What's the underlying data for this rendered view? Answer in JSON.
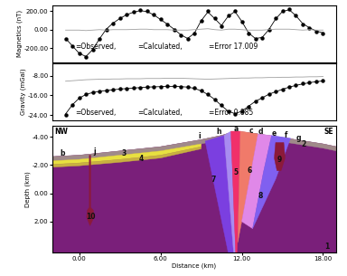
{
  "chart_data": [
    {
      "type": "line",
      "y_label": "Magnetics (nT)",
      "x": [
        -1,
        -0.5,
        0,
        0.5,
        1,
        1.5,
        2,
        2.5,
        3,
        3.5,
        4,
        4.5,
        5,
        5.5,
        6,
        6.5,
        7,
        7.5,
        8,
        8.5,
        9,
        9.5,
        10,
        10.5,
        11,
        11.5,
        12,
        12.5,
        13,
        13.5,
        14,
        14.5,
        15,
        15.5,
        16,
        16.5,
        17,
        17.5,
        18
      ],
      "series": [
        {
          "name": "=Observed,",
          "color": "#000000",
          "marker": "dot",
          "line_style": "none",
          "values": [
            -100,
            -180,
            -260,
            -300,
            -220,
            -100,
            0,
            70,
            120,
            160,
            190,
            210,
            200,
            160,
            110,
            60,
            0,
            -60,
            -100,
            -40,
            100,
            200,
            120,
            40,
            150,
            200,
            90,
            -40,
            -100,
            -90,
            0,
            120,
            200,
            220,
            150,
            60,
            20,
            -20,
            -40
          ]
        },
        {
          "name": "=Calculated,",
          "color": "#000000",
          "marker": "none",
          "line_style": "solid",
          "values": [
            -95,
            -175,
            -255,
            -290,
            -215,
            -100,
            5,
            70,
            120,
            160,
            188,
            205,
            195,
            160,
            110,
            60,
            5,
            -55,
            -95,
            -40,
            95,
            190,
            120,
            45,
            145,
            195,
            90,
            -35,
            -95,
            -85,
            0,
            115,
            195,
            215,
            150,
            65,
            20,
            -15,
            -35
          ]
        },
        {
          "name": "=Error 17.009",
          "color": "#a0a0a0",
          "marker": "none",
          "line_style": "solid",
          "values": [
            -5,
            -5,
            -5,
            -10,
            -5,
            0,
            -5,
            0,
            0,
            0,
            2,
            5,
            5,
            0,
            0,
            0,
            -5,
            -5,
            -5,
            0,
            5,
            10,
            0,
            -5,
            5,
            5,
            0,
            -5,
            -5,
            -5,
            0,
            5,
            5,
            5,
            0,
            -5,
            0,
            -5,
            -5
          ]
        }
      ],
      "xlim": [
        -2,
        19
      ],
      "ylim": [
        -350,
        260
      ],
      "yticks": [
        {
          "value": 200,
          "label": "200.00"
        },
        {
          "value": 0,
          "label": "0.00"
        },
        {
          "value": -200,
          "label": "-200.00"
        }
      ],
      "tick_labels": "y"
    },
    {
      "type": "line",
      "y_label": "Gravity (mGal)",
      "x": [
        -1,
        -0.5,
        0,
        0.5,
        1,
        1.5,
        2,
        2.5,
        3,
        3.5,
        4,
        4.5,
        5,
        5.5,
        6,
        6.5,
        7,
        7.5,
        8,
        8.5,
        9,
        9.5,
        10,
        10.5,
        11,
        11.5,
        12,
        12.5,
        13,
        13.5,
        14,
        14.5,
        15,
        15.5,
        16,
        16.5,
        17,
        17.5,
        18
      ],
      "series": [
        {
          "name": "=Observed,",
          "color": "#000000",
          "marker": "dot",
          "line_style": "none",
          "values": [
            -24,
            -20,
            -17,
            -15.5,
            -14.8,
            -14.3,
            -14,
            -13.7,
            -13.4,
            -13.2,
            -13,
            -12.8,
            -12.6,
            -12.5,
            -12.4,
            -12.3,
            -12.3,
            -12.4,
            -12.6,
            -13,
            -14,
            -15.5,
            -17.5,
            -20,
            -22.5,
            -23.5,
            -22.5,
            -20.5,
            -18.5,
            -17,
            -15.5,
            -14.5,
            -13.5,
            -12.5,
            -11.8,
            -11.2,
            -10.7,
            -10.3,
            -10
          ]
        },
        {
          "name": "=Calculated,",
          "color": "#000000",
          "marker": "none",
          "line_style": "solid",
          "values": [
            -23.5,
            -19.8,
            -17.1,
            -15.6,
            -14.8,
            -14.3,
            -14,
            -13.7,
            -13.4,
            -13.2,
            -13,
            -12.8,
            -12.6,
            -12.5,
            -12.4,
            -12.3,
            -12.3,
            -12.4,
            -12.6,
            -13.1,
            -14.1,
            -15.6,
            -17.6,
            -20.1,
            -22.4,
            -23.4,
            -22.4,
            -20.4,
            -18.4,
            -17,
            -15.5,
            -14.5,
            -13.5,
            -12.6,
            -11.9,
            -11.3,
            -10.8,
            -10.4,
            -10.1
          ]
        },
        {
          "name": "=Error 0.885",
          "color": "#a0a0a0",
          "marker": "none",
          "line_style": "solid",
          "values": [
            -10.2,
            -10,
            -9.8,
            -9.6,
            -9.5,
            -9.4,
            -9.4,
            -9.3,
            -9.3,
            -9.2,
            -9.2,
            -9.2,
            -9.1,
            -9.1,
            -9.1,
            -9,
            -9,
            -9,
            -9.1,
            -9.2,
            -9.3,
            -9.4,
            -9.3,
            -9.2,
            -9.1,
            -9,
            -8.9,
            -8.9,
            -8.8,
            -8.8,
            -8.7,
            -8.7,
            -8.6,
            -8.6,
            -8.5,
            -8.5,
            -8.4,
            -8.4,
            -8.3
          ]
        }
      ],
      "xlim": [
        -2,
        19
      ],
      "ylim": [
        -26,
        -3
      ],
      "yticks": [
        {
          "value": -8,
          "label": "-8.00"
        },
        {
          "value": -16,
          "label": "-16.00"
        },
        {
          "value": -24,
          "label": "-24.00"
        }
      ],
      "tick_labels": "y"
    },
    {
      "type": "section",
      "x_label": "Distance (km)",
      "y_label": "Depth (km)",
      "left_text": "NW",
      "right_text": "SE",
      "xlim": [
        -2,
        19
      ],
      "ylim": [
        4.2,
        -4.8
      ],
      "xticks": [
        {
          "value": 0,
          "label": "0.00"
        },
        {
          "value": 6,
          "label": "6.00"
        },
        {
          "value": 12,
          "label": "12.00"
        },
        {
          "value": 18,
          "label": "18.00"
        }
      ],
      "yticks": [
        {
          "value": -4,
          "label": "-4.00"
        },
        {
          "value": -2,
          "label": "-2.00"
        },
        {
          "value": 0,
          "label": "0.00"
        },
        {
          "value": 2,
          "label": "2.00"
        }
      ],
      "units": [
        {
          "color": "#7a1f7a",
          "polygon": [
            [
              -2,
              -2.6
            ],
            [
              0,
              -2.7
            ],
            [
              3,
              -3.0
            ],
            [
              6,
              -3.3
            ],
            [
              9,
              -3.8
            ],
            [
              10.5,
              -4.1
            ],
            [
              11.5,
              -4.4
            ],
            [
              12.5,
              -4.3
            ],
            [
              14,
              -4.1
            ],
            [
              16,
              -3.8
            ],
            [
              18,
              -3.5
            ],
            [
              19,
              -3.3
            ],
            [
              19,
              4.2
            ],
            [
              -2,
              4.2
            ]
          ]
        },
        {
          "color": "#a08a8a",
          "polygon": [
            [
              -2,
              -2.6
            ],
            [
              0,
              -2.7
            ],
            [
              3,
              -3.0
            ],
            [
              6,
              -3.3
            ],
            [
              9,
              -3.8
            ],
            [
              10.5,
              -4.1
            ],
            [
              11.5,
              -4.4
            ],
            [
              12.5,
              -4.3
            ],
            [
              14,
              -4.1
            ],
            [
              16,
              -3.8
            ],
            [
              18,
              -3.5
            ],
            [
              19,
              -3.3
            ],
            [
              19,
              -3.0
            ],
            [
              18,
              -3.2
            ],
            [
              16,
              -3.5
            ],
            [
              14,
              -3.8
            ],
            [
              12.5,
              -4.0
            ],
            [
              11.5,
              -4.1
            ],
            [
              10.5,
              -3.8
            ],
            [
              9,
              -3.5
            ],
            [
              6,
              -3.0
            ],
            [
              3,
              -2.7
            ],
            [
              0,
              -2.4
            ],
            [
              -2,
              -2.3
            ]
          ]
        },
        {
          "color": "#e8e040",
          "polygon": [
            [
              -2,
              -2.3
            ],
            [
              0,
              -2.4
            ],
            [
              3,
              -2.7
            ],
            [
              6,
              -3.0
            ],
            [
              9,
              -3.5
            ],
            [
              9,
              -3.3
            ],
            [
              6,
              -2.7
            ],
            [
              3,
              -2.4
            ],
            [
              0,
              -2.15
            ],
            [
              -2,
              -2.05
            ]
          ]
        },
        {
          "color": "#c8b040",
          "polygon": [
            [
              -2,
              -2.05
            ],
            [
              0,
              -2.15
            ],
            [
              3,
              -2.4
            ],
            [
              6,
              -2.7
            ],
            [
              9,
              -3.3
            ],
            [
              9,
              -3.15
            ],
            [
              6,
              -2.5
            ],
            [
              3,
              -2.2
            ],
            [
              0,
              -1.95
            ],
            [
              -2,
              -1.85
            ]
          ]
        },
        {
          "color": "#7b3fe0",
          "polygon": [
            [
              9.3,
              -3.7
            ],
            [
              10.7,
              -4.1
            ],
            [
              11.4,
              4.2
            ],
            [
              11.0,
              4.2
            ]
          ]
        },
        {
          "color": "#a88cf0",
          "polygon": [
            [
              10.7,
              -4.1
            ],
            [
              11.2,
              -4.4
            ],
            [
              11.55,
              4.2
            ],
            [
              11.4,
              4.2
            ]
          ]
        },
        {
          "color": "#f0306a",
          "polygon": [
            [
              11.2,
              -4.4
            ],
            [
              11.9,
              -4.4
            ],
            [
              11.65,
              4.2
            ],
            [
              11.55,
              4.2
            ]
          ]
        },
        {
          "color": "#f07a6a",
          "polygon": [
            [
              11.9,
              -4.4
            ],
            [
              13.2,
              -4.2
            ],
            [
              12.0,
              2.0
            ],
            [
              11.7,
              3.5
            ]
          ]
        },
        {
          "color": "#e088e8",
          "polygon": [
            [
              13.2,
              -4.2
            ],
            [
              14.2,
              -4.1
            ],
            [
              13.6,
              -1.5
            ],
            [
              12.8,
              2.5
            ],
            [
              12.0,
              2.0
            ]
          ]
        },
        {
          "color": "#8060f0",
          "polygon": [
            [
              14.2,
              -4.1
            ],
            [
              15.6,
              -3.9
            ],
            [
              14.5,
              -1.0
            ],
            [
              12.8,
              2.5
            ],
            [
              13.6,
              -1.5
            ]
          ]
        },
        {
          "color": "#8b1a3a",
          "polygon": [
            [
              14.5,
              -3.6
            ],
            [
              15.1,
              -3.6
            ],
            [
              15.2,
              -2.5
            ],
            [
              14.9,
              -1.6
            ],
            [
              14.6,
              -1.6
            ],
            [
              14.4,
              -2.5
            ]
          ]
        },
        {
          "color": "#8b1a3a",
          "polygon": [
            [
              0.75,
              -2.7
            ],
            [
              0.85,
              -2.7
            ],
            [
              0.85,
              1.0
            ],
            [
              1.05,
              1.2
            ],
            [
              1.1,
              1.7
            ],
            [
              0.8,
              2.3
            ],
            [
              0.55,
              1.7
            ],
            [
              0.6,
              1.2
            ],
            [
              0.75,
              1.0
            ]
          ]
        }
      ],
      "labels": [
        {
          "text": "a",
          "x": 11.6,
          "y": -4.55
        },
        {
          "text": "b",
          "x": -1.2,
          "y": -2.85
        },
        {
          "text": "c",
          "x": 12.7,
          "y": -4.45
        },
        {
          "text": "d",
          "x": 13.4,
          "y": -4.35
        },
        {
          "text": "e",
          "x": 14.4,
          "y": -4.25
        },
        {
          "text": "f",
          "x": 15.3,
          "y": -4.1
        },
        {
          "text": "g",
          "x": 16.2,
          "y": -3.95
        },
        {
          "text": "h",
          "x": 10.3,
          "y": -4.35
        },
        {
          "text": "i",
          "x": 8.9,
          "y": -4.05
        },
        {
          "text": "j",
          "x": 1.1,
          "y": -2.95
        },
        {
          "text": "1",
          "x": 18.3,
          "y": 3.8
        },
        {
          "text": "2",
          "x": 16.6,
          "y": -3.45
        },
        {
          "text": "3",
          "x": 3.3,
          "y": -2.8
        },
        {
          "text": "4",
          "x": 4.6,
          "y": -2.45
        },
        {
          "text": "5",
          "x": 11.6,
          "y": -1.5
        },
        {
          "text": "6",
          "x": 12.6,
          "y": -1.6
        },
        {
          "text": "7",
          "x": 9.9,
          "y": -1.0
        },
        {
          "text": "8",
          "x": 13.4,
          "y": 0.2
        },
        {
          "text": "9",
          "x": 14.8,
          "y": -2.4
        },
        {
          "text": "10",
          "x": 0.85,
          "y": 1.65
        }
      ]
    }
  ]
}
